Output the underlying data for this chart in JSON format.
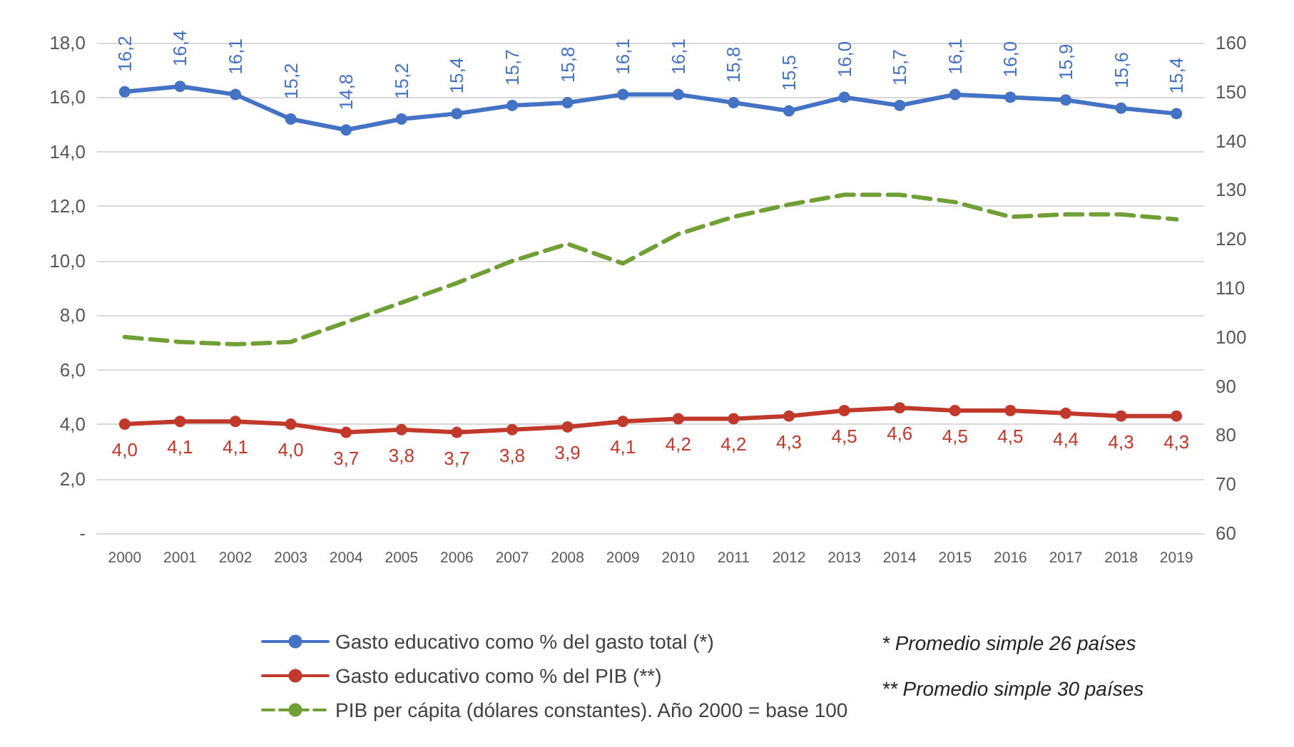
{
  "chart_data": {
    "type": "line",
    "categories": [
      "2000",
      "2001",
      "2002",
      "2003",
      "2004",
      "2005",
      "2006",
      "2007",
      "2008",
      "2009",
      "2010",
      "2011",
      "2012",
      "2013",
      "2014",
      "2015",
      "2016",
      "2017",
      "2018",
      "2019"
    ],
    "series": [
      {
        "name": "Gasto educativo como % del gasto total (*)",
        "color": "#4472c4",
        "marker": "circle",
        "line_style": "solid",
        "values": [
          16.2,
          16.4,
          16.1,
          15.2,
          14.8,
          15.2,
          15.4,
          15.7,
          15.8,
          16.1,
          16.1,
          15.8,
          15.5,
          16.0,
          15.7,
          16.1,
          16.0,
          15.9,
          15.6,
          15.4
        ],
        "value_labels": [
          "16,2",
          "16,4",
          "16,1",
          "15,2",
          "14,8",
          "15,2",
          "15,4",
          "15,7",
          "15,8",
          "16,1",
          "16,1",
          "15,8",
          "15,5",
          "16,0",
          "15,7",
          "16,1",
          "16,0",
          "15,9",
          "15,6",
          "15,4"
        ]
      },
      {
        "name": "Gasto educativo como % del PIB (**)",
        "color": "#c0392b",
        "marker": "circle",
        "line_style": "solid",
        "values": [
          4.0,
          4.1,
          4.1,
          4.0,
          3.7,
          3.8,
          3.7,
          3.8,
          3.9,
          4.1,
          4.2,
          4.2,
          4.3,
          4.5,
          4.6,
          4.5,
          4.5,
          4.4,
          4.3,
          4.3
        ],
        "value_labels": [
          "4,0",
          "4,1",
          "4,1",
          "4,0",
          "3,7",
          "3,8",
          "3,7",
          "3,8",
          "3,9",
          "4,1",
          "4,2",
          "4,2",
          "4,3",
          "4,5",
          "4,6",
          "4,5",
          "4,5",
          "4,4",
          "4,3",
          "4,3"
        ]
      },
      {
        "name": "PIB per cápita (dólares constantes). Año 2000 = base 100",
        "color": "#70a035",
        "marker": "none",
        "line_style": "dashed",
        "axis": "y2",
        "values": [
          100,
          99,
          98.5,
          99,
          103,
          107,
          111,
          115.5,
          119,
          115,
          121,
          124.5,
          127,
          129,
          129,
          127.5,
          124.5,
          125,
          125,
          124
        ]
      }
    ],
    "ylim": [
      0,
      18
    ],
    "yticks": [
      {
        "value": 0,
        "label": "-"
      },
      {
        "value": 2,
        "label": "2,0"
      },
      {
        "value": 4,
        "label": "4,0"
      },
      {
        "value": 6,
        "label": "6,0"
      },
      {
        "value": 8,
        "label": "8,0"
      },
      {
        "value": 10,
        "label": "10,0"
      },
      {
        "value": 12,
        "label": "12,0"
      },
      {
        "value": 14,
        "label": "14,0"
      },
      {
        "value": 16,
        "label": "16,0"
      },
      {
        "value": 18,
        "label": "18,0"
      }
    ],
    "y2lim": [
      60,
      160
    ],
    "y2ticks": [
      60,
      70,
      80,
      90,
      100,
      110,
      120,
      130,
      140,
      150,
      160
    ],
    "grid": "y",
    "legend": "bottom",
    "annotations": [
      "* Promedio simple 26 países",
      "** Promedio simple 30 países"
    ]
  }
}
